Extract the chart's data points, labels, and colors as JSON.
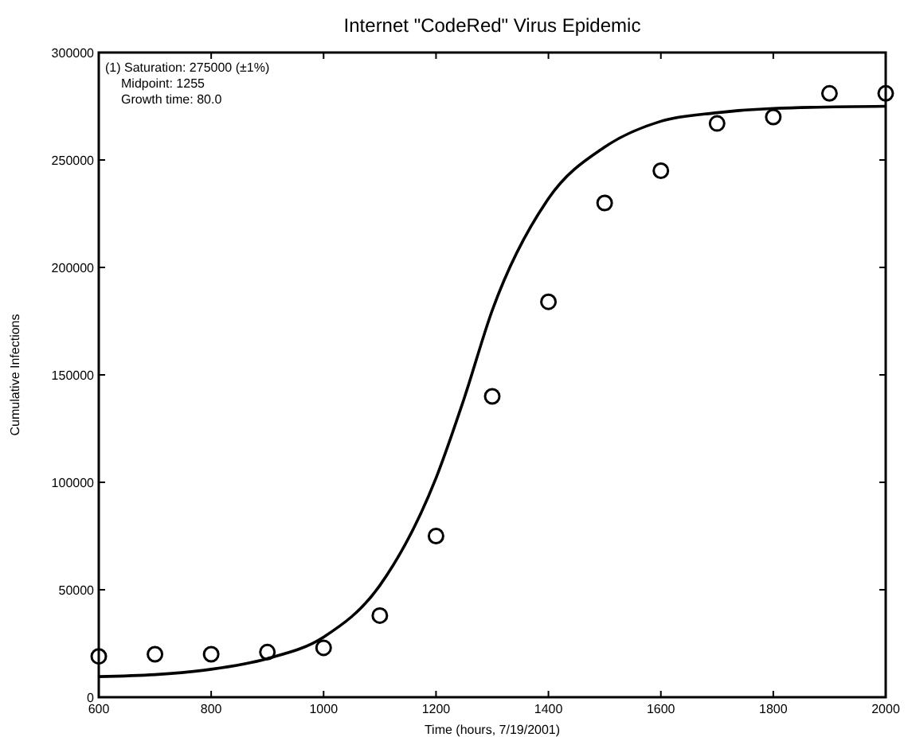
{
  "chart_data": {
    "type": "scatter",
    "title": "Internet \"CodeRed\" Virus Epidemic",
    "xlabel": "Time (hours, 7/19/2001)",
    "ylabel": "Cumulative Infections",
    "annotations": [
      "(1) Saturation:   275000 (±1%)",
      "Midpoint:   1255",
      "Growth time:   80.0"
    ],
    "xlim": [
      600,
      2000
    ],
    "xticks": [
      600,
      800,
      1000,
      1200,
      1400,
      1600,
      1800,
      2000
    ],
    "ylim": [
      0,
      300000
    ],
    "yticks": [
      0,
      50000,
      100000,
      150000,
      200000,
      250000,
      300000
    ],
    "grid": false,
    "series": [
      {
        "color": "#000000",
        "marker": "circle",
        "x": [
          600,
          700,
          800,
          900,
          1000,
          1100,
          1200,
          1300,
          1400,
          1500,
          1600,
          1700,
          1800,
          1900,
          2000
        ],
        "values": [
          19000,
          20000,
          20000,
          21000,
          23000,
          38000,
          75000,
          140000,
          184000,
          230000,
          245000,
          267000,
          270000,
          281000,
          281000
        ]
      },
      {
        "type": "line",
        "color": "#000000",
        "marker": "none",
        "line_style": "solid",
        "x": [
          600,
          700,
          800,
          900,
          1000,
          1100,
          1200,
          1250,
          1300,
          1400,
          1500,
          1600,
          1700,
          1800,
          2000
        ],
        "values": [
          9600,
          10500,
          13000,
          18000,
          28000,
          52000,
          102000,
          139000,
          180000,
          232000,
          256000,
          268000,
          272000,
          274000,
          275000
        ]
      }
    ]
  }
}
